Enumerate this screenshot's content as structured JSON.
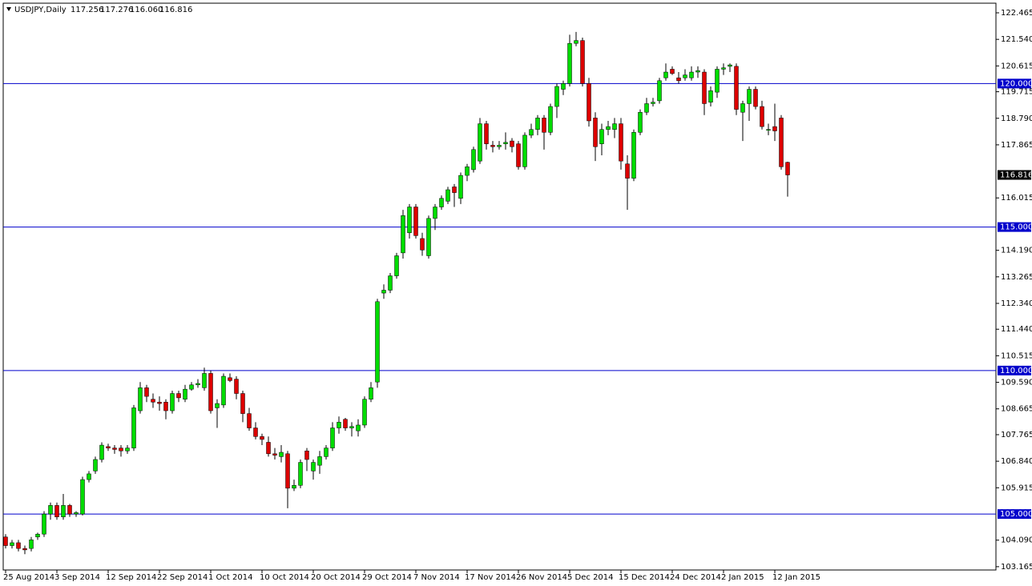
{
  "chart_data": {
    "type": "candlestick",
    "symbol": "USDJPY,Daily",
    "quote": [
      "117.256",
      "117.276",
      "116.060",
      "116.816"
    ],
    "categories": [
      "25 Aug 2014",
      null,
      null,
      null,
      null,
      null,
      null,
      null,
      "3 Sep 2014",
      null,
      null,
      null,
      null,
      null,
      null,
      null,
      "12 Sep 2014",
      null,
      null,
      null,
      null,
      null,
      null,
      null,
      "22 Sep 2014",
      null,
      null,
      null,
      null,
      null,
      null,
      null,
      "1 Oct 2014",
      null,
      null,
      null,
      null,
      null,
      null,
      null,
      "10 Oct 2014",
      null,
      null,
      null,
      null,
      null,
      null,
      null,
      "20 Oct 2014",
      null,
      null,
      null,
      null,
      null,
      null,
      null,
      "29 Oct 2014",
      null,
      null,
      null,
      null,
      null,
      null,
      null,
      "7 Nov 2014",
      null,
      null,
      null,
      null,
      null,
      null,
      null,
      "17 Nov 2014",
      null,
      null,
      null,
      null,
      null,
      null,
      null,
      "26 Nov 2014",
      null,
      null,
      null,
      null,
      null,
      null,
      null,
      "5 Dec 2014",
      null,
      null,
      null,
      null,
      null,
      null,
      null,
      "15 Dec 2014",
      null,
      null,
      null,
      null,
      null,
      null,
      null,
      "24 Dec 2014",
      null,
      null,
      null,
      null,
      null,
      null,
      null,
      "2 Jan 2015",
      null,
      null,
      null,
      null,
      null,
      null,
      null,
      "12 Jan 2015",
      null,
      null
    ],
    "open": [
      104.2,
      103.9,
      104.0,
      103.8,
      103.8,
      104.2,
      104.3,
      105.0,
      105.3,
      104.9,
      105.3,
      105.0,
      105.0,
      106.2,
      106.5,
      106.9,
      107.35,
      107.3,
      107.3,
      107.2,
      107.3,
      108.6,
      109.4,
      109.0,
      108.9,
      108.9,
      108.6,
      109.2,
      109.0,
      109.35,
      109.5,
      109.4,
      109.9,
      108.7,
      108.8,
      109.75,
      109.7,
      109.2,
      108.5,
      108.0,
      107.7,
      107.5,
      107.1,
      107.0,
      107.1,
      105.9,
      106.0,
      107.2,
      106.5,
      106.7,
      107.0,
      107.3,
      108.0,
      108.3,
      108.0,
      107.9,
      108.1,
      109.0,
      109.6,
      112.7,
      112.8,
      113.3,
      114.1,
      114.8,
      115.7,
      114.6,
      114.0,
      115.3,
      115.7,
      115.9,
      116.4,
      116.0,
      116.8,
      117.0,
      117.3,
      118.6,
      117.85,
      117.8,
      117.9,
      118.0,
      117.9,
      117.1,
      118.2,
      118.4,
      118.8,
      118.3,
      119.2,
      119.8,
      120.0,
      121.4,
      121.5,
      120.0,
      118.8,
      117.9,
      118.4,
      118.4,
      118.6,
      117.2,
      116.7,
      118.3,
      119.0,
      119.3,
      119.4,
      120.2,
      120.5,
      120.2,
      120.2,
      120.2,
      120.4,
      120.4,
      119.35,
      119.7,
      120.5,
      120.6,
      120.6,
      119.0,
      119.3,
      119.8,
      119.2,
      118.4,
      118.5,
      118.8,
      117.256
    ],
    "high": [
      104.3,
      104.1,
      104.1,
      103.9,
      104.2,
      104.35,
      105.1,
      105.4,
      105.4,
      105.7,
      105.35,
      105.1,
      106.3,
      106.5,
      107.0,
      107.5,
      107.45,
      107.4,
      107.4,
      107.4,
      108.8,
      109.6,
      109.5,
      109.2,
      109.1,
      109.0,
      109.3,
      109.3,
      109.5,
      109.6,
      109.7,
      110.1,
      110.0,
      109.0,
      109.9,
      109.9,
      109.8,
      109.3,
      108.7,
      108.2,
      107.8,
      107.7,
      107.3,
      107.4,
      107.2,
      106.2,
      106.9,
      107.3,
      106.9,
      107.2,
      107.4,
      108.2,
      108.4,
      108.35,
      108.2,
      108.3,
      109.1,
      109.6,
      112.5,
      113.0,
      113.4,
      114.1,
      115.6,
      115.8,
      115.8,
      114.8,
      115.4,
      115.8,
      116.1,
      116.4,
      116.5,
      116.9,
      117.2,
      117.8,
      118.8,
      118.7,
      118.0,
      118.0,
      118.3,
      118.1,
      118.0,
      118.3,
      118.6,
      118.9,
      118.9,
      119.3,
      120.0,
      120.1,
      121.7,
      121.8,
      121.6,
      120.2,
      119.0,
      118.6,
      118.7,
      118.8,
      118.8,
      117.5,
      118.4,
      119.1,
      119.5,
      119.5,
      120.2,
      120.7,
      120.6,
      120.4,
      120.5,
      120.6,
      120.6,
      120.5,
      119.9,
      120.6,
      120.7,
      120.7,
      120.7,
      119.4,
      119.9,
      119.9,
      119.4,
      118.6,
      119.3,
      118.9,
      117.276
    ],
    "low": [
      103.8,
      103.8,
      103.7,
      103.6,
      103.7,
      104.1,
      104.2,
      104.8,
      104.8,
      104.8,
      104.9,
      104.9,
      104.95,
      106.1,
      106.4,
      106.8,
      107.2,
      107.1,
      107.0,
      107.1,
      107.2,
      108.5,
      108.9,
      108.7,
      108.6,
      108.3,
      108.5,
      108.9,
      108.9,
      109.3,
      109.4,
      109.3,
      108.5,
      108.0,
      108.7,
      109.6,
      109.0,
      108.2,
      107.9,
      107.6,
      107.4,
      107.0,
      106.9,
      106.8,
      105.2,
      105.8,
      105.9,
      106.5,
      106.2,
      106.4,
      106.9,
      107.2,
      107.8,
      107.9,
      107.7,
      107.7,
      108.0,
      108.9,
      109.4,
      112.5,
      112.7,
      113.2,
      113.9,
      114.6,
      114.6,
      114.0,
      113.9,
      114.9,
      115.6,
      115.8,
      115.7,
      115.8,
      116.6,
      116.9,
      117.2,
      117.7,
      117.6,
      117.7,
      117.7,
      117.6,
      117.0,
      117.0,
      118.1,
      118.2,
      117.7,
      118.2,
      118.8,
      119.6,
      119.9,
      121.3,
      119.9,
      118.5,
      117.3,
      117.5,
      118.2,
      118.1,
      117.0,
      115.6,
      116.6,
      118.2,
      118.9,
      119.2,
      119.3,
      120.1,
      120.3,
      120.0,
      120.1,
      120.1,
      120.2,
      118.9,
      119.2,
      119.5,
      120.3,
      120.4,
      118.9,
      118.0,
      118.7,
      119.1,
      118.4,
      118.2,
      118.0,
      117.0,
      116.06
    ],
    "close": [
      103.9,
      104.0,
      103.8,
      103.75,
      104.1,
      104.3,
      105.0,
      105.3,
      104.9,
      105.3,
      105.0,
      105.05,
      106.2,
      106.4,
      106.9,
      107.4,
      107.3,
      107.25,
      107.2,
      107.3,
      108.7,
      109.4,
      109.1,
      108.9,
      108.85,
      108.6,
      109.2,
      109.05,
      109.35,
      109.5,
      109.55,
      109.9,
      108.6,
      108.85,
      109.8,
      109.65,
      109.2,
      108.5,
      108.0,
      107.7,
      107.6,
      107.1,
      107.05,
      107.15,
      105.9,
      106.0,
      106.8,
      106.9,
      106.8,
      107.0,
      107.3,
      108.0,
      108.2,
      108.0,
      108.05,
      108.1,
      109.0,
      109.4,
      112.4,
      112.8,
      113.3,
      114.0,
      115.4,
      115.7,
      114.7,
      114.2,
      115.3,
      115.7,
      116.0,
      116.3,
      116.2,
      116.8,
      117.1,
      117.7,
      118.6,
      117.9,
      117.8,
      117.85,
      117.95,
      117.8,
      117.1,
      118.2,
      118.4,
      118.8,
      118.3,
      119.2,
      119.9,
      120.0,
      121.4,
      121.5,
      120.0,
      118.7,
      117.8,
      118.4,
      118.5,
      118.6,
      117.3,
      116.7,
      118.3,
      119.0,
      119.3,
      119.35,
      120.1,
      120.4,
      120.35,
      120.1,
      120.3,
      120.4,
      120.45,
      119.3,
      119.75,
      120.5,
      120.55,
      120.65,
      119.1,
      119.3,
      119.8,
      119.2,
      118.5,
      118.4,
      118.35,
      117.1,
      116.816
    ],
    "up_color": "#00dd00",
    "down_color": "#dd0000",
    "ylim": [
      103.05,
      122.8
    ],
    "yticks": [
      122.465,
      {
        "value": 121.54,
        "label": "121.540"
      },
      120.615,
      119.715,
      {
        "value": 118.79,
        "label": "118.790"
      },
      117.865,
      116.015,
      {
        "value": 114.19,
        "label": "114.190"
      },
      113.265,
      {
        "value": 112.34,
        "label": "112.340"
      },
      {
        "value": 111.44,
        "label": "111.440"
      },
      110.515,
      {
        "value": 109.59,
        "label": "109.590"
      },
      108.665,
      107.765,
      {
        "value": 106.84,
        "label": "106.840"
      },
      105.915,
      {
        "value": 104.09,
        "label": "104.090"
      },
      103.165
    ],
    "levels": [
      {
        "value": 120,
        "label": "120.000"
      },
      {
        "value": 115,
        "label": "115.000"
      },
      {
        "value": 110,
        "label": "110.000"
      },
      {
        "value": 105,
        "label": "105.000"
      }
    ],
    "level_color": "#0000cc",
    "last_price": {
      "value": 116.816,
      "label": "116.816"
    }
  }
}
